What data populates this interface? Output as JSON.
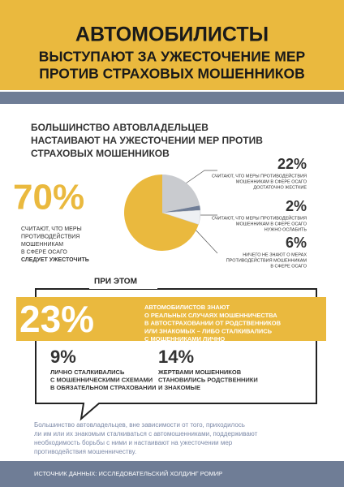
{
  "header": {
    "title_lines": [
      "АВТОМОБИЛИСТЫ",
      "ВЫСТУПАЮТ ЗА УЖЕСТОЧЕНИЕ МЕР",
      "ПРОТИВ СТРАХОВЫХ МОШЕННИКОВ"
    ]
  },
  "chart_data": {
    "type": "pie",
    "title": [
      "БОЛЬШИНСТВО АВТОВЛАДЕЛЬЦЕВ",
      "НАСТАИВАЮТ НА УЖЕСТОЧЕНИИ МЕР ПРОТИВ",
      "СТРАХОВЫХ МОШЕННИКОВ"
    ],
    "values": [
      70,
      22,
      2,
      6
    ],
    "value_labels": [
      "70%",
      "22%",
      "2%",
      "6%"
    ],
    "colors": [
      "#eab93e",
      "#c9cbcf",
      "#6f7d96",
      "#eef0f3"
    ],
    "descriptions": [
      [
        "СЧИТАЮТ, ЧТО МЕРЫ",
        "ПРОТИВОДЕЙСТВИЯ",
        "МОШЕННИКАМ",
        "В СФЕРЕ ОСАГО",
        "СЛЕДУЕТ УЖЕСТОЧИТЬ"
      ],
      [
        "СЧИТАЮТ, ЧТО МЕРЫ ПРОТИВОДЕЙСТВИЯ",
        "МОШЕННИКАМ В СФЕРЕ ОСАГО",
        "ДОСТАТОЧНО ЖЕСТКИЕ"
      ],
      [
        "СЧИТАЮТ, ЧТО МЕРЫ ПРОТИВОДЕЙСТВИЯ",
        "МОШЕННИКАМ В СФЕРЕ ОСАГО",
        "НУЖНО ОСЛАБИТЬ"
      ],
      [
        "НИЧЕГО НЕ ЗНАЮТ О МЕРАХ",
        "ПРОТИВОДЕЙСТВИЯ МОШЕННИКАМ",
        "В СФЕРЕ ОСАГО"
      ]
    ]
  },
  "callout": {
    "heading": "ПРИ ЭТОМ",
    "main": {
      "value_label": "23%",
      "text": [
        "АВТОМОБИЛИСТОВ ЗНАЮТ",
        "О РЕАЛЬНЫХ СЛУЧАЯХ МОШЕННИЧЕСТВА",
        "В АВТОСТРАХОВАНИИ ОТ РОДСТВЕННИКОВ",
        "ИЛИ ЗНАКОМЫХ – ЛИБО СТАЛКИВАЛИСЬ",
        "С МОШЕННИКАМИ ЛИЧНО"
      ]
    },
    "stats": [
      {
        "value_label": "9%",
        "text": [
          "ЛИЧНО СТАЛКИВАЛИСЬ",
          "С МОШЕННИЧЕСКИМИ СХЕМАМИ",
          "В ОБЯЗАТЕЛЬНОМ СТРАХОВАНИИ"
        ]
      },
      {
        "value_label": "14%",
        "text": [
          "ЖЕРТВАМИ МОШЕННИКОВ",
          "СТАНОВИЛИСЬ РОДСТВЕННИКИ",
          "И ЗНАКОМЫЕ"
        ]
      }
    ]
  },
  "note": [
    "Большинство автовладельцев, вне зависимости от того, приходилось",
    "ли им или их знакомым сталкиваться с автомошенниками, поддерживают",
    "необходимость борьбы с ними и настаивают на ужесточении мер",
    "противодействия мошенничеству."
  ],
  "footer": "ИСТОЧНИК ДАННЫХ: ИССЛЕДОВАТЕЛЬСКИЙ ХОЛДИНГ РОМИР"
}
